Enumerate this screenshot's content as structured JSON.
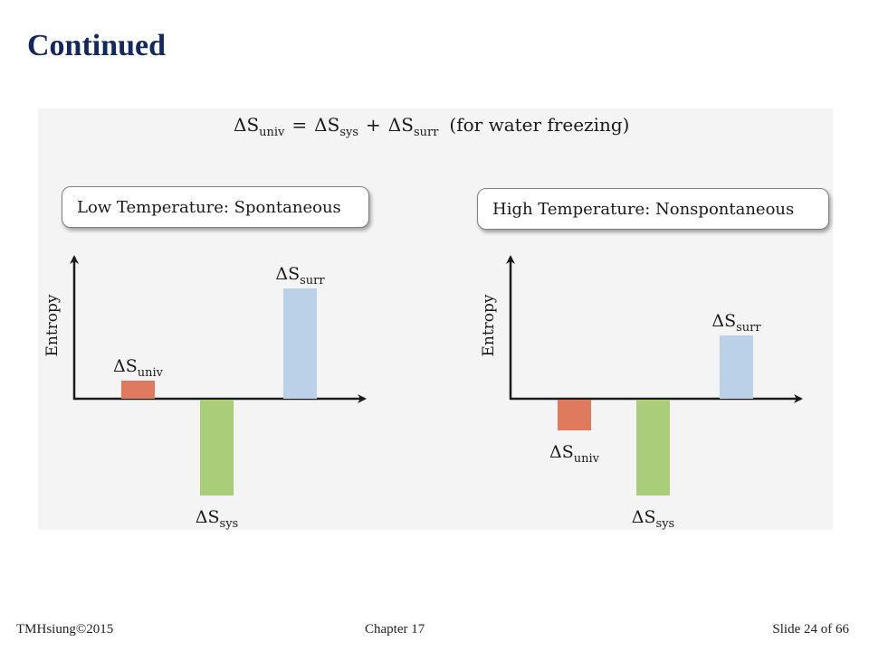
{
  "slide": {
    "title": "Continued",
    "footer_left": "TMHsiung©2015",
    "footer_center": "Chapter 17",
    "footer_right": "Slide 24 of 66"
  },
  "equation": {
    "lhs": "ΔS",
    "lhs_sub": "univ",
    "eq": "=",
    "t1": "ΔS",
    "t1_sub": "sys",
    "plus": "+",
    "t2": "ΔS",
    "t2_sub": "surr",
    "note": "(for water freezing)"
  },
  "chart_data": [
    {
      "type": "bar",
      "title": "Low Temperature: Spontaneous",
      "ylabel": "Entropy",
      "categories": [
        "ΔSuniv",
        "ΔSsys",
        "ΔSsurr"
      ],
      "labels": [
        {
          "main": "ΔS",
          "sub": "univ"
        },
        {
          "main": "ΔS",
          "sub": "sys"
        },
        {
          "main": "ΔS",
          "sub": "surr"
        }
      ],
      "values": [
        1,
        -5.3,
        6.1
      ],
      "colors": [
        "#e07a5f",
        "#a9cd78",
        "#bad1e8"
      ],
      "ylim": [
        -6,
        8
      ],
      "grid": false
    },
    {
      "type": "bar",
      "title": "High Temperature: Nonspontaneous",
      "ylabel": "Entropy",
      "categories": [
        "ΔSuniv",
        "ΔSsys",
        "ΔSsurr"
      ],
      "labels": [
        {
          "main": "ΔS",
          "sub": "univ"
        },
        {
          "main": "ΔS",
          "sub": "sys"
        },
        {
          "main": "ΔS",
          "sub": "surr"
        }
      ],
      "values": [
        -1.7,
        -5.3,
        3.5
      ],
      "colors": [
        "#e07a5f",
        "#a9cd78",
        "#bad1e8"
      ],
      "ylim": [
        -6,
        8
      ],
      "grid": false
    }
  ]
}
